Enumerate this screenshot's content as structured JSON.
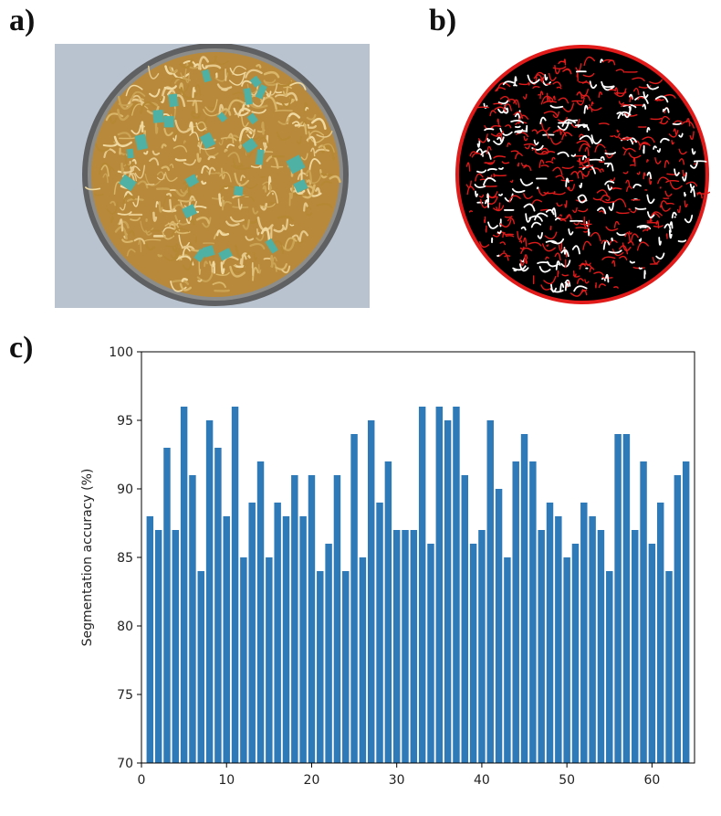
{
  "figure": {
    "panel_labels": [
      "a)",
      "b)",
      "c)"
    ],
    "photo": {
      "description_icon": "sample-photo-icon"
    },
    "segmentation": {
      "description_icon": "segmentation-mask-icon"
    }
  },
  "colors": {
    "bar": "#2e7ab8",
    "fiber": "#c9a24b",
    "patch": "#4fb0a4",
    "mask_bg": "#000000",
    "mask_edge": "#e11a1a"
  },
  "chart_data": {
    "type": "bar",
    "title": "",
    "xlabel": "",
    "ylabel": "Segmentation accuracy (%)",
    "x": [
      1,
      2,
      3,
      4,
      5,
      6,
      7,
      8,
      9,
      10,
      11,
      12,
      13,
      14,
      15,
      16,
      17,
      18,
      19,
      20,
      21,
      22,
      23,
      24,
      25,
      26,
      27,
      28,
      29,
      30,
      31,
      32,
      33,
      34,
      35,
      36,
      37,
      38,
      39,
      40,
      41,
      42,
      43,
      44,
      45,
      46,
      47,
      48,
      49,
      50,
      51,
      52,
      53,
      54,
      55,
      56,
      57,
      58,
      59,
      60,
      61,
      62,
      63,
      64
    ],
    "values": [
      88,
      87,
      93,
      87,
      96,
      91,
      84,
      95,
      93,
      88,
      96,
      85,
      89,
      92,
      85,
      89,
      88,
      91,
      88,
      91,
      84,
      86,
      91,
      84,
      94,
      85,
      95,
      89,
      92,
      87,
      87,
      87,
      96,
      86,
      96,
      95,
      96,
      91,
      86,
      87,
      95,
      90,
      85,
      92,
      94,
      92,
      87,
      89,
      88,
      85,
      86,
      89,
      88,
      87,
      84,
      94,
      94,
      87,
      92,
      86,
      89,
      84,
      91,
      92
    ],
    "xlim": [
      0,
      65
    ],
    "ylim": [
      70,
      100
    ],
    "xticks": [
      "0",
      "10",
      "20",
      "30",
      "40",
      "50",
      "60"
    ],
    "yticks": [
      "70",
      "75",
      "80",
      "85",
      "90",
      "95",
      "100"
    ]
  }
}
